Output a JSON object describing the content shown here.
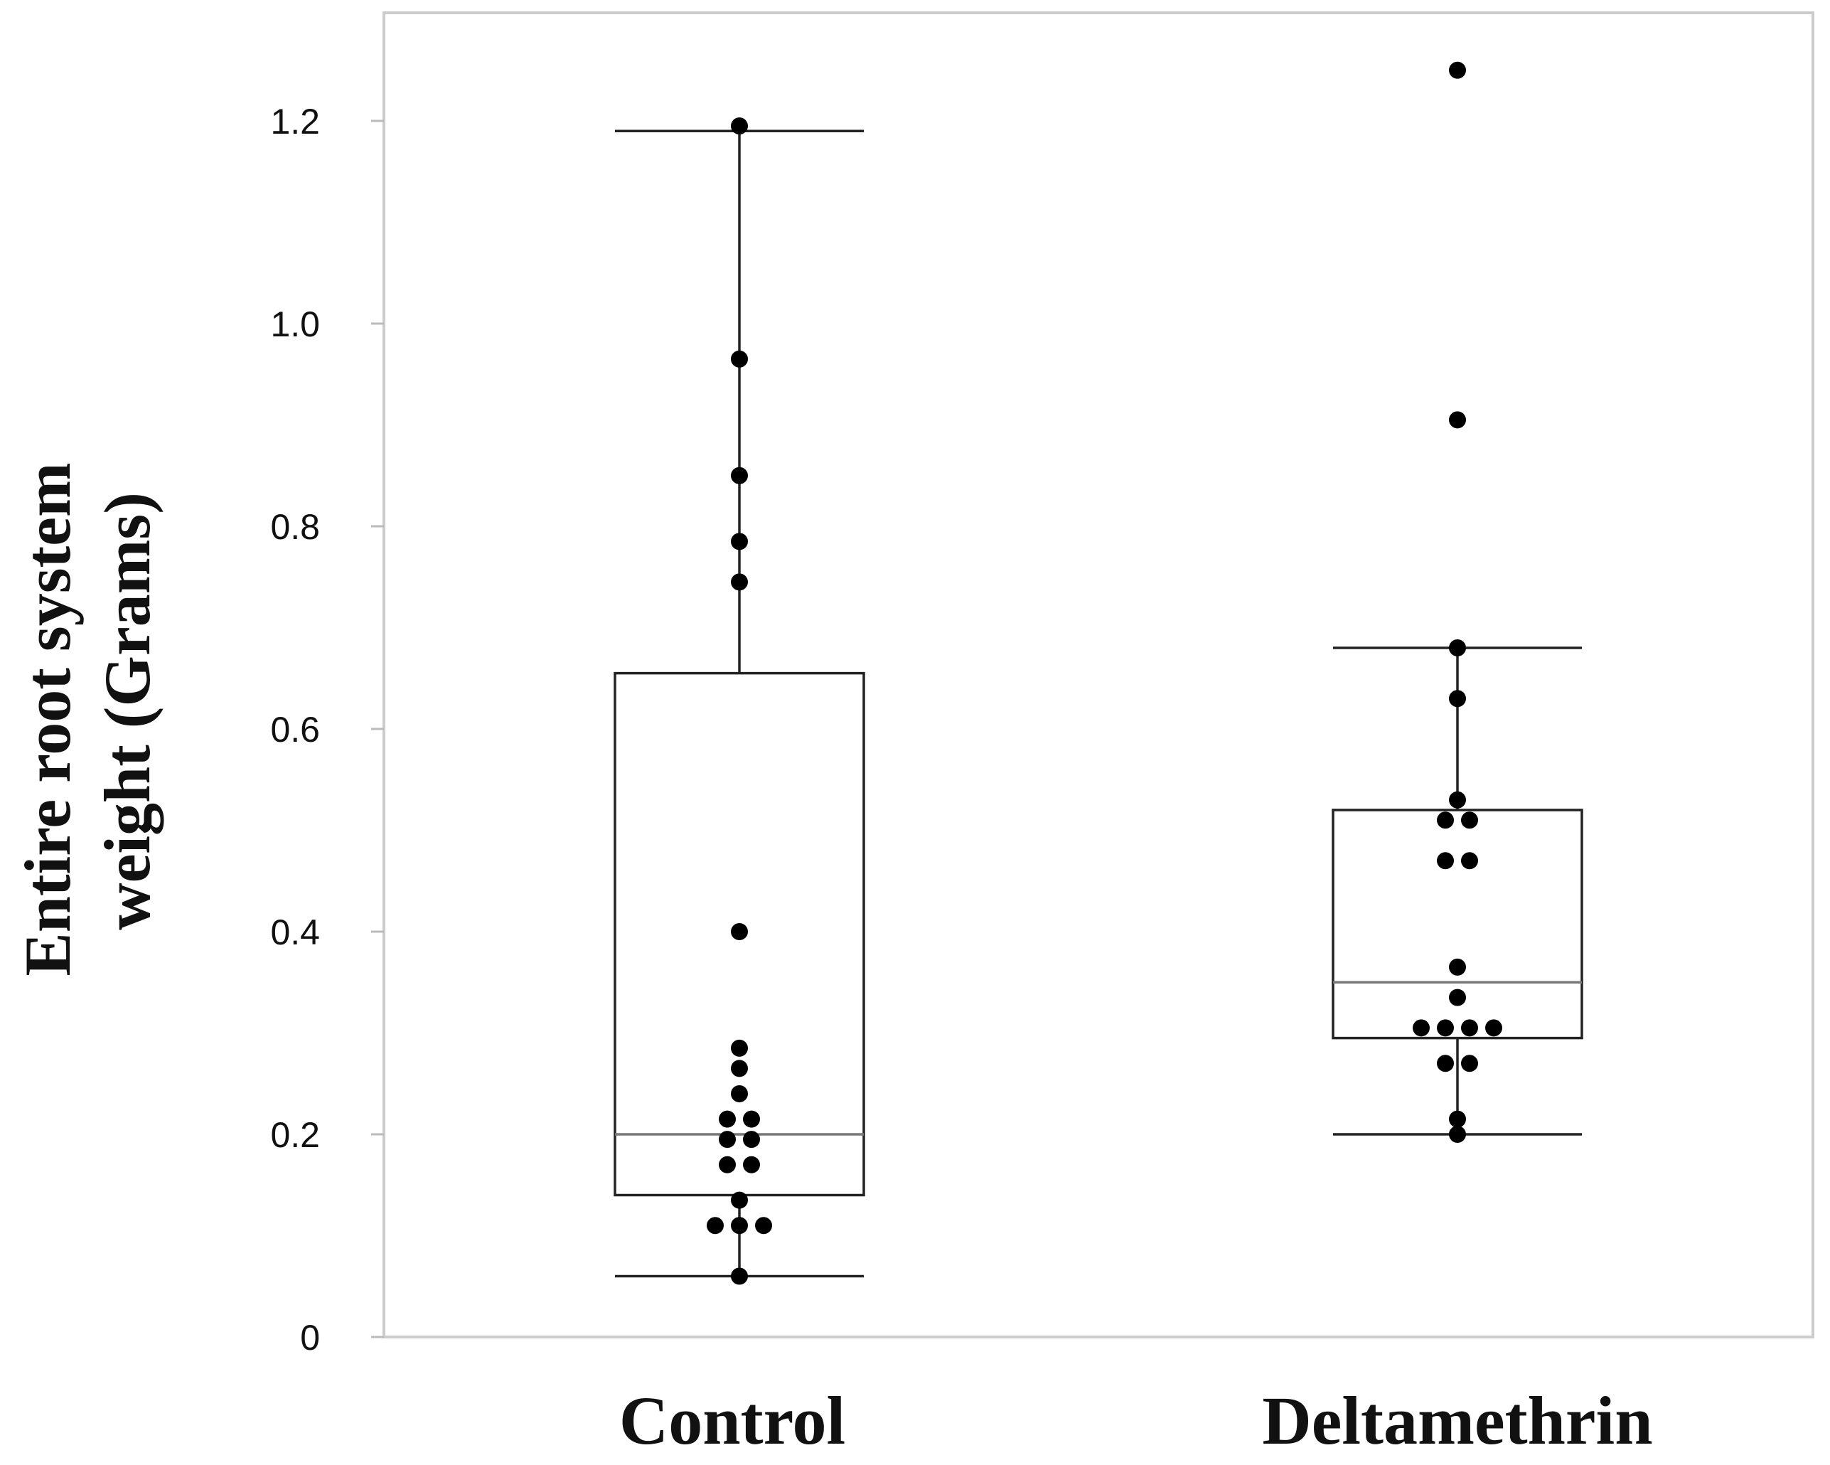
{
  "chart_data": {
    "type": "box",
    "title": "",
    "xlabel": "",
    "ylabel_lines": [
      "Entire root system",
      "weight (Grams)"
    ],
    "ylim": [
      0,
      1.3
    ],
    "yticks": [
      {
        "value": 0,
        "label": "0"
      },
      {
        "value": 0.2,
        "label": "0.2"
      },
      {
        "value": 0.4,
        "label": "0.4"
      },
      {
        "value": 0.6,
        "label": "0.6"
      },
      {
        "value": 0.8,
        "label": "0.8"
      },
      {
        "value": 1.0,
        "label": "1.0"
      },
      {
        "value": 1.2,
        "label": "1.2"
      }
    ],
    "grid": false,
    "categories": [
      "Control",
      "Deltamethrin"
    ],
    "groups": [
      {
        "name": "Control",
        "whisker_low": 0.06,
        "q1": 0.14,
        "median": 0.2,
        "q3": 0.655,
        "whisker_high": 1.19,
        "points": [
          {
            "y": 1.195,
            "offset": 0
          },
          {
            "y": 0.965,
            "offset": 0
          },
          {
            "y": 0.85,
            "offset": 0
          },
          {
            "y": 0.785,
            "offset": 0
          },
          {
            "y": 0.745,
            "offset": 0
          },
          {
            "y": 0.4,
            "offset": 0
          },
          {
            "y": 0.285,
            "offset": 0
          },
          {
            "y": 0.265,
            "offset": 0
          },
          {
            "y": 0.24,
            "offset": 0
          },
          {
            "y": 0.215,
            "offset": -1
          },
          {
            "y": 0.215,
            "offset": 1
          },
          {
            "y": 0.195,
            "offset": -1
          },
          {
            "y": 0.195,
            "offset": 1
          },
          {
            "y": 0.17,
            "offset": -1
          },
          {
            "y": 0.17,
            "offset": 1
          },
          {
            "y": 0.135,
            "offset": 0
          },
          {
            "y": 0.11,
            "offset": -2
          },
          {
            "y": 0.11,
            "offset": 0
          },
          {
            "y": 0.11,
            "offset": 2
          },
          {
            "y": 0.06,
            "offset": 0
          }
        ]
      },
      {
        "name": "Deltamethrin",
        "whisker_low": 0.2,
        "q1": 0.295,
        "median": 0.35,
        "q3": 0.52,
        "whisker_high": 0.68,
        "points": [
          {
            "y": 1.25,
            "offset": 0
          },
          {
            "y": 0.905,
            "offset": 0
          },
          {
            "y": 0.68,
            "offset": 0
          },
          {
            "y": 0.63,
            "offset": 0
          },
          {
            "y": 0.53,
            "offset": 0
          },
          {
            "y": 0.51,
            "offset": -1
          },
          {
            "y": 0.51,
            "offset": 1
          },
          {
            "y": 0.47,
            "offset": -1
          },
          {
            "y": 0.47,
            "offset": 1
          },
          {
            "y": 0.365,
            "offset": 0
          },
          {
            "y": 0.335,
            "offset": 0
          },
          {
            "y": 0.305,
            "offset": -3
          },
          {
            "y": 0.305,
            "offset": -1
          },
          {
            "y": 0.305,
            "offset": 1
          },
          {
            "y": 0.305,
            "offset": 3
          },
          {
            "y": 0.27,
            "offset": -1
          },
          {
            "y": 0.27,
            "offset": 1
          },
          {
            "y": 0.215,
            "offset": 0
          },
          {
            "y": 0.2,
            "offset": 0
          }
        ]
      }
    ]
  }
}
